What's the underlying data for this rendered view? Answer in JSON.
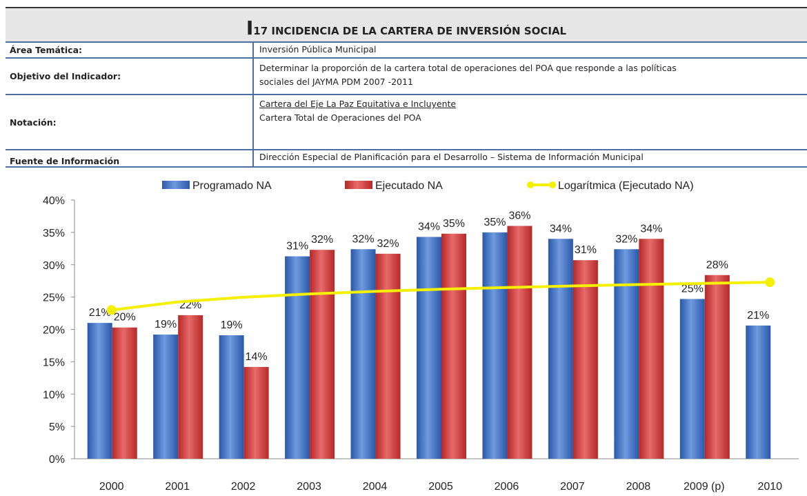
{
  "header": {
    "title": "I17 INCIDENCIA DE LA CARTERA DE  INVERSIÓN SOCIAL"
  },
  "table": {
    "rows": [
      {
        "label": "Área Temática:",
        "value": [
          "Inversión Pública Municipal"
        ]
      },
      {
        "label": "Objetivo del Indicador:",
        "value": [
          "Determinar la proporción de la cartera total de operaciones del POA que responde a las políticas",
          "sociales del JAYMA PDM 2007 -2011"
        ]
      },
      {
        "label": "Notación:",
        "value": [
          "Cartera del Eje La Paz Equitativa e Incluyente",
          "Cartera Total de Operaciones del POA"
        ]
      },
      {
        "label": "Fuente de Información",
        "value": [
          "Dirección Especial de Planificación para el Desarrollo – Sistema de Información Municipal"
        ]
      }
    ]
  },
  "chart_data": {
    "type": "bar",
    "categories": [
      "2000",
      "2001",
      "2002",
      "2003",
      "2004",
      "2005",
      "2006",
      "2007",
      "2008",
      "2009 (p)",
      "2010"
    ],
    "series": [
      {
        "name": "Programado NA",
        "color": "#3a6fc4",
        "values": [
          21,
          19.2,
          19.1,
          31.3,
          32.4,
          34.3,
          35,
          34,
          32.4,
          24.7,
          20.6
        ],
        "value_labels": [
          "21%",
          "19%",
          "19%",
          "31%",
          "32%",
          "34%",
          "35%",
          "34%",
          "32%",
          "25%",
          "21%"
        ]
      },
      {
        "name": "Ejecutado NA",
        "color": "#d23a3a",
        "values": [
          20.3,
          22.2,
          14.2,
          32.3,
          31.7,
          34.8,
          36,
          30.7,
          34,
          28.4,
          null
        ],
        "value_labels": [
          "20%",
          "22%",
          "14%",
          "32%",
          "32%",
          "35%",
          "36%",
          "31%",
          "34%",
          "28%",
          null
        ]
      },
      {
        "name": "Logarítmica (Ejecutado NA)",
        "type": "line",
        "color": "#f5f000",
        "values": [
          23,
          24.24,
          24.97,
          25.48,
          25.88,
          26.21,
          26.48,
          26.72,
          26.93,
          27.12,
          27.29
        ]
      }
    ],
    "ylim": [
      0,
      40
    ],
    "yticks": [
      {
        "value": 0,
        "label": "0%"
      },
      {
        "value": 5,
        "label": "5%"
      },
      {
        "value": 10,
        "label": "10%"
      },
      {
        "value": 15,
        "label": "15%"
      },
      {
        "value": 20,
        "label": "20%"
      },
      {
        "value": 25,
        "label": "25%"
      },
      {
        "value": 30,
        "label": "30%"
      },
      {
        "value": 35,
        "label": "35%"
      },
      {
        "value": 40,
        "label": "40%"
      }
    ],
    "legend": "top"
  }
}
